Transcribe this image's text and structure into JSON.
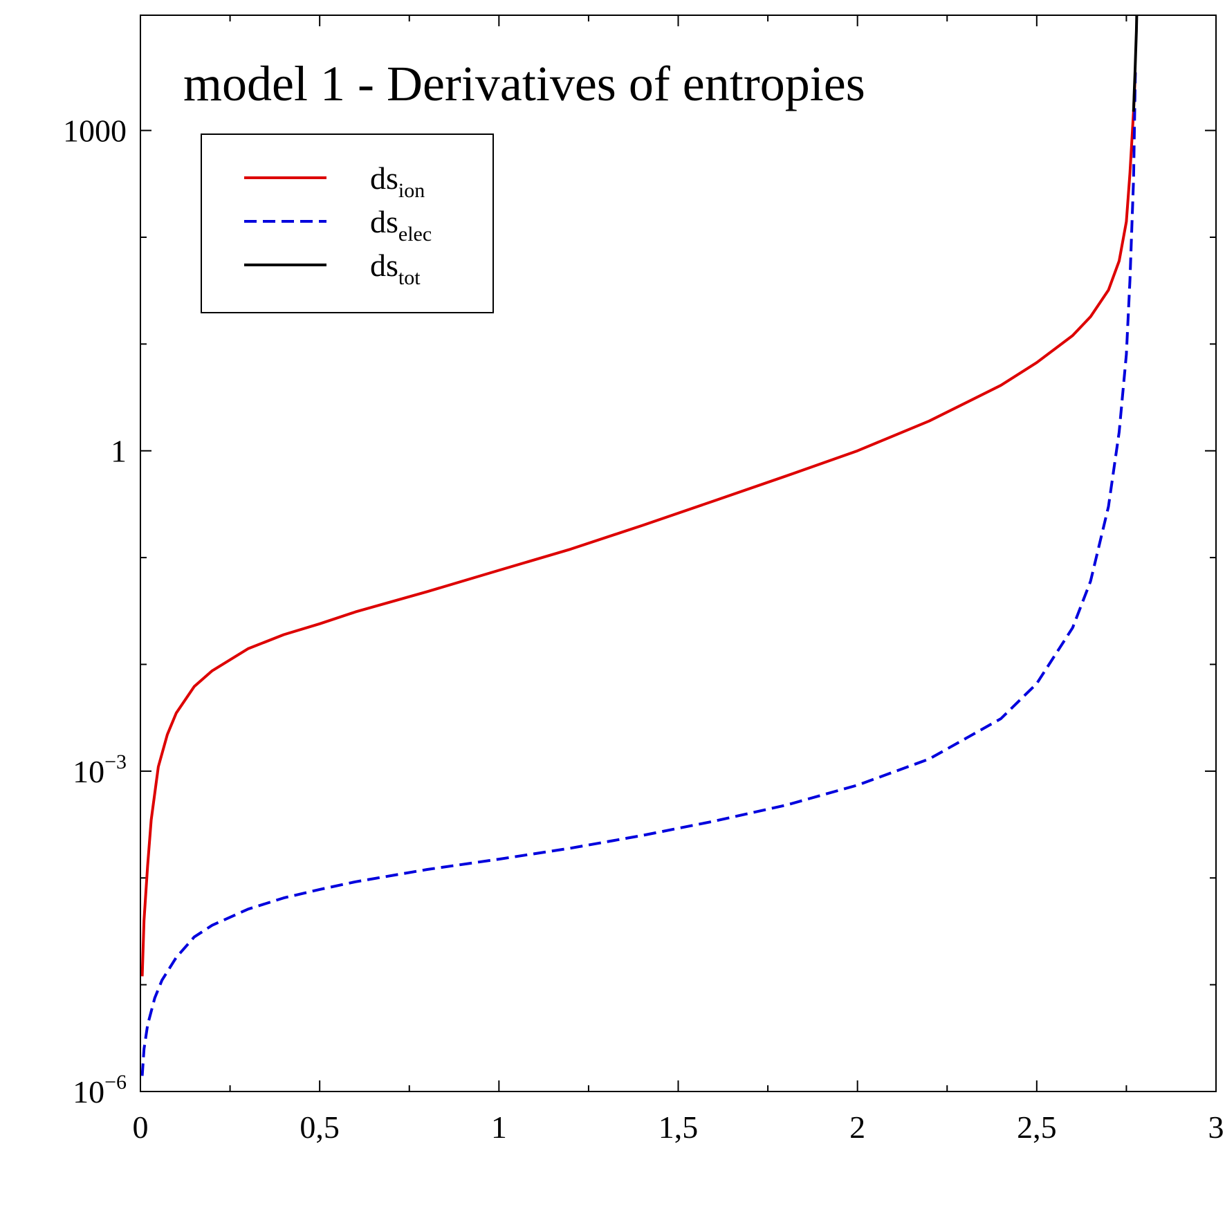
{
  "chart_data": {
    "type": "line",
    "title": "model 1 - Derivatives of entropies",
    "xlabel": "",
    "ylabel": "",
    "xlim": [
      0,
      3
    ],
    "ylim": [
      1e-06,
      12000
    ],
    "yscale": "log",
    "grid": false,
    "legend_position": "top-left",
    "x_ticks": [
      {
        "value": 0,
        "label": "0"
      },
      {
        "value": 0.5,
        "label": "0,5"
      },
      {
        "value": 1,
        "label": "1"
      },
      {
        "value": 1.5,
        "label": "1,5"
      },
      {
        "value": 2,
        "label": "2"
      },
      {
        "value": 2.5,
        "label": "2,5"
      },
      {
        "value": 3,
        "label": "3"
      }
    ],
    "y_ticks": [
      {
        "value": 1e-06,
        "base": "10",
        "exp": "−6"
      },
      {
        "value": 0.001,
        "base": "10",
        "exp": "−3"
      },
      {
        "value": 1,
        "base": "1",
        "exp": ""
      },
      {
        "value": 1000,
        "base": "1000",
        "exp": ""
      }
    ],
    "y_minor_ticks": [
      1e-05,
      0.0001,
      0.01,
      0.1,
      10,
      100
    ],
    "series": [
      {
        "name_main": "ds",
        "name_sub": "ion",
        "color": "#dd0000",
        "dash": "solid",
        "x": [
          0.005,
          0.01,
          0.02,
          0.03,
          0.05,
          0.075,
          0.1,
          0.15,
          0.2,
          0.3,
          0.4,
          0.5,
          0.6,
          0.8,
          1.0,
          1.2,
          1.4,
          1.6,
          1.8,
          2.0,
          2.2,
          2.4,
          2.5,
          2.6,
          2.65,
          2.7,
          2.73,
          2.75,
          2.76,
          2.77,
          2.775
        ],
        "y": [
          1.2e-05,
          4e-05,
          0.00013,
          0.00035,
          0.0011,
          0.0022,
          0.0035,
          0.0062,
          0.0087,
          0.014,
          0.019,
          0.024,
          0.031,
          0.048,
          0.076,
          0.12,
          0.2,
          0.34,
          0.58,
          1.0,
          1.9,
          4.1,
          6.7,
          12,
          18,
          32,
          60,
          140,
          400,
          1500,
          3500
        ]
      },
      {
        "name_main": "ds",
        "name_sub": "elec",
        "color": "#0000dd",
        "dash": "dashed",
        "x": [
          0.005,
          0.01,
          0.02,
          0.04,
          0.06,
          0.1,
          0.15,
          0.2,
          0.3,
          0.4,
          0.5,
          0.6,
          0.8,
          1.0,
          1.2,
          1.4,
          1.6,
          1.8,
          2.0,
          2.2,
          2.4,
          2.5,
          2.6,
          2.65,
          2.7,
          2.73,
          2.75,
          2.76,
          2.77,
          2.775
        ],
        "y": [
          1.4e-06,
          2.5e-06,
          4.2e-06,
          7.5e-06,
          1.1e-05,
          1.8e-05,
          2.8e-05,
          3.6e-05,
          5.1e-05,
          6.5e-05,
          7.8e-05,
          9.2e-05,
          0.00012,
          0.00015,
          0.00019,
          0.00025,
          0.00034,
          0.00048,
          0.00074,
          0.0013,
          0.0031,
          0.0066,
          0.022,
          0.06,
          0.3,
          1.5,
          8,
          40,
          350,
          3500
        ]
      },
      {
        "name_main": "ds",
        "name_sub": "tot",
        "color": "#000000",
        "dash": "solid",
        "x": [
          2.77,
          2.772,
          2.774,
          2.776,
          2.778,
          2.779
        ],
        "y": [
          1500,
          2300,
          3500,
          5500,
          8500,
          12000
        ]
      }
    ]
  }
}
